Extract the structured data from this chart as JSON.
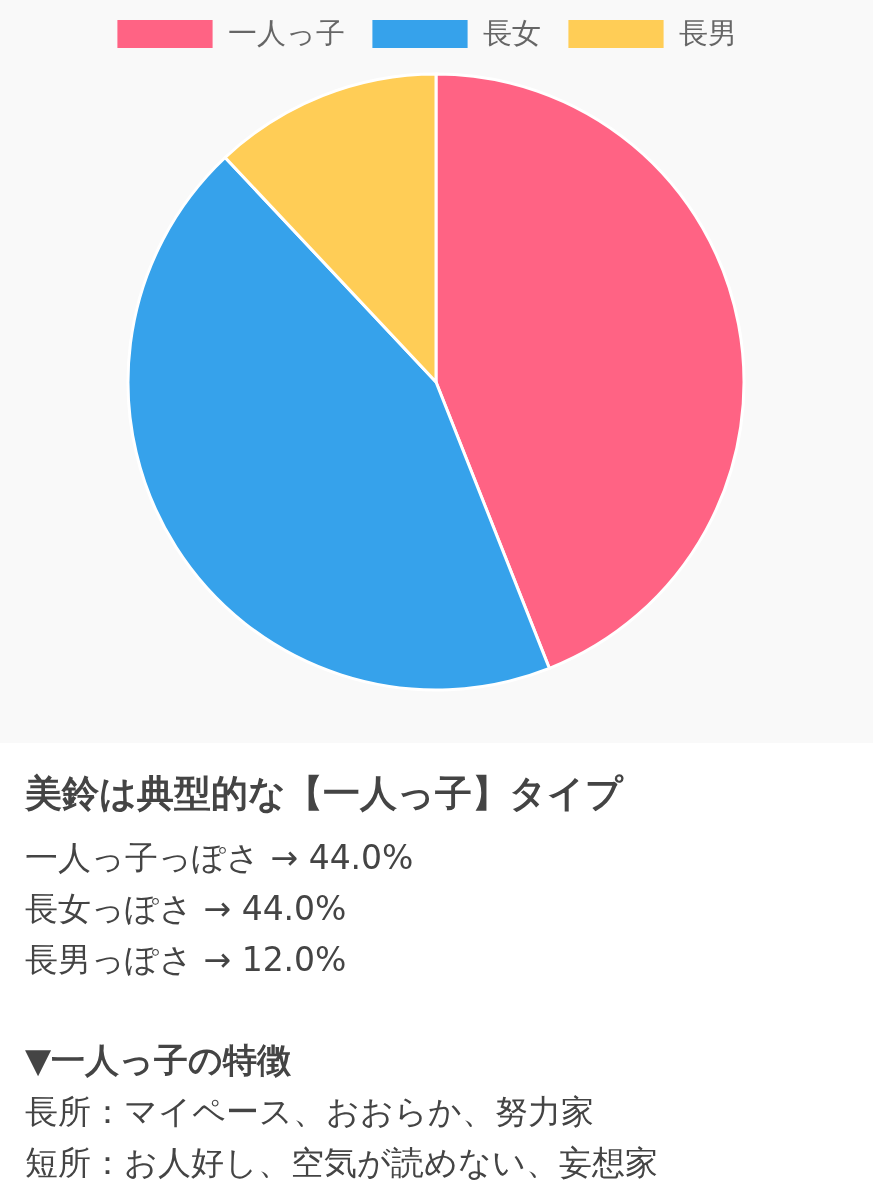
{
  "chart_data": {
    "type": "pie",
    "title": "美鈴は典型的な【一人っ子】タイプ",
    "categories": [
      "一人っ子",
      "長女",
      "長男"
    ],
    "values": [
      44,
      44,
      12
    ],
    "colors": [
      "#ff6384",
      "#36a2eb",
      "#ffcd56"
    ],
    "legend": "top",
    "annotations": [
      "一人っ子っぽさ → 44.0%",
      "長女っぽさ → 44.0%",
      "長男っぽさ → 12.0%",
      "▼一人っ子の特徴",
      "長所：マイペース、おおらか、努力家",
      "短所：お人好し、空気が読めない、妄想家"
    ]
  }
}
